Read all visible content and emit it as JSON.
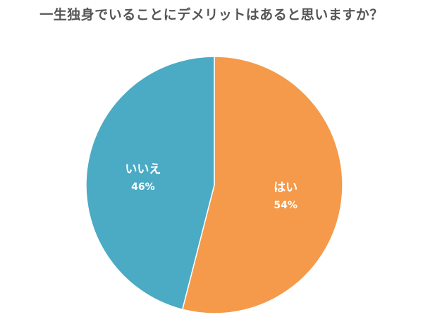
{
  "title": "一生独身でいることにデメリットはあると思いますか？",
  "chart_data": {
    "type": "pie",
    "title": "一生独身でいることにデメリットはあると思いますか？",
    "slices": [
      {
        "label": "はい",
        "value": 54,
        "display": "54%",
        "color": "#F49A4A"
      },
      {
        "label": "いいえ",
        "value": 46,
        "display": "46%",
        "color": "#4BAAC4"
      }
    ],
    "start_angle": "12 o'clock",
    "direction": "clockwise",
    "legend": "none"
  }
}
